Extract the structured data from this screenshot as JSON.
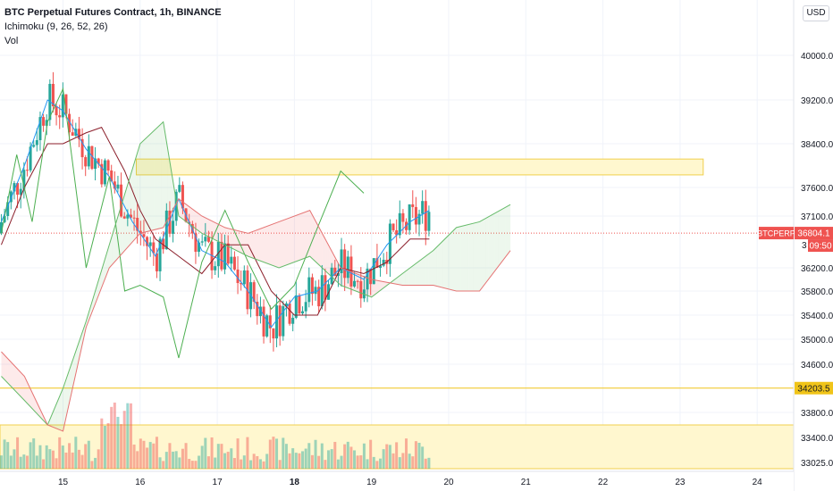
{
  "header": {
    "title": "BTC Perpetual Futures Contract, 1h, BINANCE",
    "indicator_ichimoku": "Ichimoku (9, 26, 52, 26)",
    "indicator_vol": "Vol",
    "currency_button": "USD"
  },
  "colors": {
    "up": "#26a69a",
    "down": "#ef5350",
    "tenkan": "#2196f3",
    "kijun": "#8b1e2a",
    "chikou": "#4caf50",
    "zone_fill": "#fff7cf",
    "zone_stroke": "#f0cf4c",
    "grid": "#f0f3fa"
  },
  "chart_data": {
    "type": "candlestick",
    "symbol": "BTCPERP",
    "x_tick_labels": [
      "15",
      "16",
      "17",
      "18",
      "19",
      "20",
      "21",
      "22",
      "23",
      "24"
    ],
    "y_tick_labels": [
      "40000.0",
      "39200.0",
      "38400.0",
      "37600.0",
      "37100.0",
      "36200.0",
      "35800.0",
      "35400.0",
      "35000.0",
      "34600.0",
      "33800.0",
      "33400.0",
      "33025.0"
    ],
    "ylim": [
      33025,
      40500
    ],
    "y_tick_values": [
      40000,
      39200,
      38400,
      37600,
      37100,
      36200,
      35800,
      35400,
      35000,
      34600,
      33800,
      33400,
      33025
    ],
    "price_labels": {
      "last": "36804.1",
      "symbol": "BTCPERP",
      "countdown": "09:50",
      "hidden_partial": "3",
      "level": "34203.5"
    },
    "last_price": 36804.1,
    "level_price": 34203.5,
    "resistance_zone": {
      "x_start": 15.95,
      "x_end": 23.3,
      "y_top": 38120,
      "y_bottom": 37830
    },
    "support_zone": {
      "x_start": 14.2,
      "x_end": 24.8,
      "y_top": 33600,
      "y_bottom": 33025
    },
    "series": [
      {
        "name": "Tenkan",
        "x": [
          14.2,
          14.5,
          14.8,
          15.0,
          15.3,
          15.6,
          15.9,
          16.2,
          16.5,
          16.8,
          17.1,
          17.4,
          17.7,
          18.0,
          18.3,
          18.6,
          18.9,
          19.2,
          19.5,
          19.75
        ],
        "y": [
          37000,
          38000,
          39200,
          39000,
          38300,
          37800,
          37000,
          36400,
          37400,
          36500,
          36300,
          35800,
          35200,
          35700,
          35800,
          36200,
          36000,
          36600,
          37000,
          37200
        ]
      },
      {
        "name": "Kijun",
        "x": [
          14.2,
          14.5,
          14.8,
          15.0,
          15.3,
          15.5,
          15.8,
          16.0,
          16.2,
          16.5,
          16.8,
          17.1,
          17.4,
          17.7,
          18.0,
          18.3,
          18.6,
          18.9,
          19.2,
          19.5,
          19.75
        ],
        "y": [
          36600,
          37600,
          38400,
          38400,
          38600,
          38700,
          37900,
          37200,
          36700,
          36400,
          36100,
          36600,
          36600,
          35800,
          35400,
          35400,
          36200,
          36100,
          36300,
          36700,
          36700
        ]
      },
      {
        "name": "Chikou",
        "x": [
          14.2,
          14.4,
          14.6,
          14.8,
          15.0,
          15.3,
          15.6,
          15.8,
          16.0,
          16.3,
          16.5,
          16.8,
          17.1,
          17.4,
          17.7,
          18.0,
          18.3,
          18.6,
          18.9
        ],
        "y": [
          36800,
          38200,
          37000,
          38800,
          39400,
          36200,
          37800,
          35800,
          35900,
          35700,
          34700,
          36300,
          37200,
          36300,
          35500,
          35900,
          36900,
          37900,
          37500
        ]
      },
      {
        "name": "Senkou A",
        "x": [
          14.2,
          14.5,
          14.8,
          15.0,
          15.3,
          15.6,
          16.0,
          16.3,
          16.5,
          16.8,
          17.1,
          17.4,
          17.8,
          18.2,
          18.6,
          19.0,
          19.4,
          19.8,
          20.1,
          20.4,
          20.8
        ],
        "y": [
          34400,
          34000,
          33600,
          34200,
          35300,
          36600,
          38400,
          38800,
          37100,
          36800,
          36600,
          36400,
          36200,
          36400,
          35900,
          35700,
          36100,
          36500,
          36900,
          37000,
          37300
        ]
      },
      {
        "name": "Senkou B",
        "x": [
          14.2,
          14.5,
          14.8,
          15.0,
          15.3,
          15.6,
          16.0,
          16.3,
          16.5,
          16.8,
          17.1,
          17.4,
          17.8,
          18.2,
          18.6,
          19.0,
          19.4,
          19.8,
          20.1,
          20.4,
          20.8
        ],
        "y": [
          34800,
          34400,
          33600,
          33500,
          35200,
          36200,
          36800,
          36900,
          37400,
          37100,
          36900,
          36800,
          37000,
          37200,
          36200,
          36000,
          35900,
          35900,
          35800,
          35800,
          36500
        ]
      }
    ]
  }
}
